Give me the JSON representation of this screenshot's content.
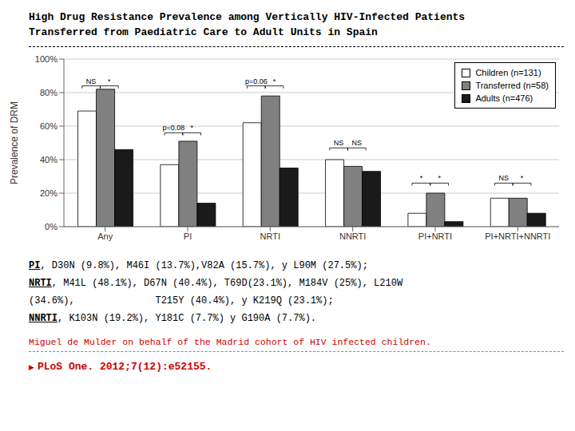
{
  "chart_data": {
    "type": "bar",
    "title": "High Drug Resistance Prevalence among Vertically HIV-Infected Patients",
    "subtitle": "Transferred from Paediatric Care to Adult Units in Spain",
    "categories": [
      "Any",
      "PI",
      "NRTI",
      "NNRTI",
      "PI+NRTI",
      "PI+NRTI+NNRTI"
    ],
    "series": [
      {
        "name": "Children (n=131)",
        "color": "#ffffff",
        "values": [
          69,
          37,
          62,
          40,
          8,
          17
        ]
      },
      {
        "name": "Transferred (n=58)",
        "color": "#808080",
        "values": [
          82,
          51,
          78,
          36,
          20,
          17
        ]
      },
      {
        "name": "Adults (n=476)",
        "color": "#1a1a1a",
        "values": [
          46,
          14,
          35,
          33,
          3,
          8
        ]
      }
    ],
    "ylabel": "Prevalence of DRM",
    "ylim": [
      0,
      100
    ],
    "yticks": [
      {
        "value": 0,
        "label": "0%"
      },
      {
        "value": 20,
        "label": "20%"
      },
      {
        "value": 40,
        "label": "40%"
      },
      {
        "value": 60,
        "label": "60%"
      },
      {
        "value": 80,
        "label": "80%"
      },
      {
        "value": 100,
        "label": "100%"
      }
    ],
    "grid": true,
    "legend": "upper right",
    "annotations": [
      {
        "category": "Any",
        "from": "Children (n=131)",
        "to": "Transferred (n=58)",
        "y": 84,
        "text": "NS"
      },
      {
        "category": "Any",
        "from": "Transferred (n=58)",
        "to": "Adults (n=476)",
        "y": 84,
        "text": "*"
      },
      {
        "category": "PI",
        "from": "Children (n=131)",
        "to": "Transferred (n=58)",
        "y": 56,
        "text": "p=0.08"
      },
      {
        "category": "PI",
        "from": "Transferred (n=58)",
        "to": "Adults (n=476)",
        "y": 56,
        "text": "*"
      },
      {
        "category": "NRTI",
        "from": "Children (n=131)",
        "to": "Transferred (n=58)",
        "y": 84,
        "text": "p=0.06"
      },
      {
        "category": "NRTI",
        "from": "Transferred (n=58)",
        "to": "Adults (n=476)",
        "y": 84,
        "text": "*"
      },
      {
        "category": "NNRTI",
        "from": "Children (n=131)",
        "to": "Transferred (n=58)",
        "y": 47,
        "text": "NS"
      },
      {
        "category": "NNRTI",
        "from": "Transferred (n=58)",
        "to": "Adults (n=476)",
        "y": 47,
        "text": "NS"
      },
      {
        "category": "PI+NRTI",
        "from": "Children (n=131)",
        "to": "Transferred (n=58)",
        "y": 26,
        "text": "*"
      },
      {
        "category": "PI+NRTI",
        "from": "Transferred (n=58)",
        "to": "Adults (n=476)",
        "y": 26,
        "text": "*"
      },
      {
        "category": "PI+NRTI+NNRTI",
        "from": "Children (n=131)",
        "to": "Transferred (n=58)",
        "y": 26,
        "text": "NS"
      },
      {
        "category": "PI+NRTI+NNRTI",
        "from": "Transferred (n=58)",
        "to": "Adults (n=476)",
        "y": 26,
        "text": "*"
      }
    ],
    "notes": [
      {
        "label": "PI",
        "text": ", D30N (9.8%), M46I (13.7%),V82A (15.7%), y L90M (27.5%);"
      },
      {
        "label": "NRTI",
        "text": ", M41L (48.1%), D67N (40.4%), T69D(23.1%), M184V (25%), L210W"
      },
      {
        "text": "(34.6%),              T215Y (40.4%), y K219Q (23.1%);"
      },
      {
        "label": "NNRTI",
        "text": ", K103N (19.2%), Y181C (7.7%) y G190A (7.7%)."
      }
    ],
    "source": [
      {
        "text": "Miguel de Mulder on behalf of the Madrid cohort of HIV infected children.",
        "color": "#cc0000"
      },
      {
        "text": "PLoS One. 2012;7(12):e52155.",
        "prefix": "▶",
        "color": "#cc0000"
      }
    ]
  }
}
